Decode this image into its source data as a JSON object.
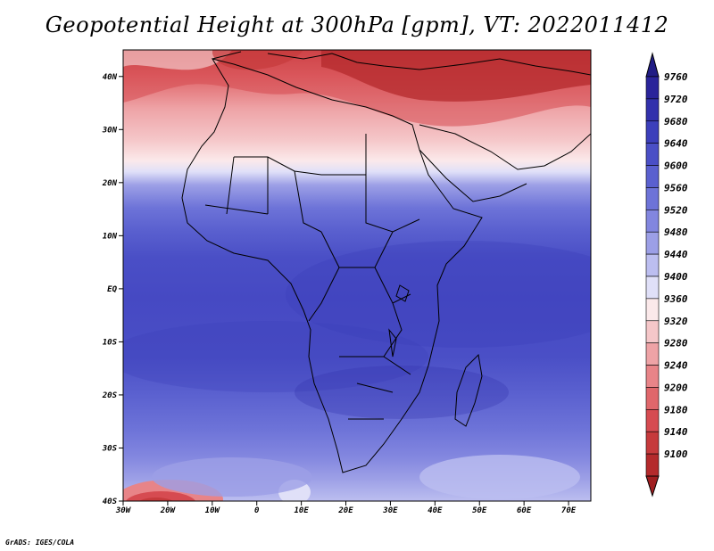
{
  "title": "Geopotential Height at 300hPa [gpm], VT: 2022011412",
  "credit": "GrADS: IGES/COLA",
  "map": {
    "lon_range": [
      -30,
      75
    ],
    "lat_range": [
      -40,
      45
    ],
    "lon_ticks": [
      {
        "value": -30,
        "label": "30W"
      },
      {
        "value": -20,
        "label": "20W"
      },
      {
        "value": -10,
        "label": "10W"
      },
      {
        "value": 0,
        "label": "0"
      },
      {
        "value": 10,
        "label": "10E"
      },
      {
        "value": 20,
        "label": "20E"
      },
      {
        "value": 30,
        "label": "30E"
      },
      {
        "value": 40,
        "label": "40E"
      },
      {
        "value": 50,
        "label": "50E"
      },
      {
        "value": 60,
        "label": "60E"
      },
      {
        "value": 70,
        "label": "70E"
      }
    ],
    "lat_ticks": [
      {
        "value": 40,
        "label": "40N"
      },
      {
        "value": 30,
        "label": "30N"
      },
      {
        "value": 20,
        "label": "20N"
      },
      {
        "value": 10,
        "label": "10N"
      },
      {
        "value": 0,
        "label": "EQ"
      },
      {
        "value": -10,
        "label": "10S"
      },
      {
        "value": -20,
        "label": "20S"
      },
      {
        "value": -30,
        "label": "30S"
      },
      {
        "value": -40,
        "label": "40S"
      }
    ]
  },
  "colorbar": {
    "levels": [
      {
        "label": "9760",
        "color": "#2a249a"
      },
      {
        "label": "9720",
        "color": "#3231ac"
      },
      {
        "label": "9680",
        "color": "#3c3fbb"
      },
      {
        "label": "9640",
        "color": "#4a4fc6"
      },
      {
        "label": "9600",
        "color": "#5a60cf"
      },
      {
        "label": "9560",
        "color": "#6d73d8"
      },
      {
        "label": "9520",
        "color": "#8286df"
      },
      {
        "label": "9480",
        "color": "#9c9fe6"
      },
      {
        "label": "9440",
        "color": "#bcbef0"
      },
      {
        "label": "9400",
        "color": "#e0e0f8"
      },
      {
        "label": "9360",
        "color": "#fbe9ea"
      },
      {
        "label": "9320",
        "color": "#f5c7c9"
      },
      {
        "label": "9280",
        "color": "#eea3a6"
      },
      {
        "label": "9240",
        "color": "#e88488"
      },
      {
        "label": "9200",
        "color": "#e0676b"
      },
      {
        "label": "9180",
        "color": "#d64b51"
      },
      {
        "label": "9140",
        "color": "#c63a3c"
      },
      {
        "label": "9100",
        "color": "#b42a2c"
      }
    ],
    "top_arrow_color": "#211d85",
    "bottom_arrow_color": "#a01e20"
  }
}
